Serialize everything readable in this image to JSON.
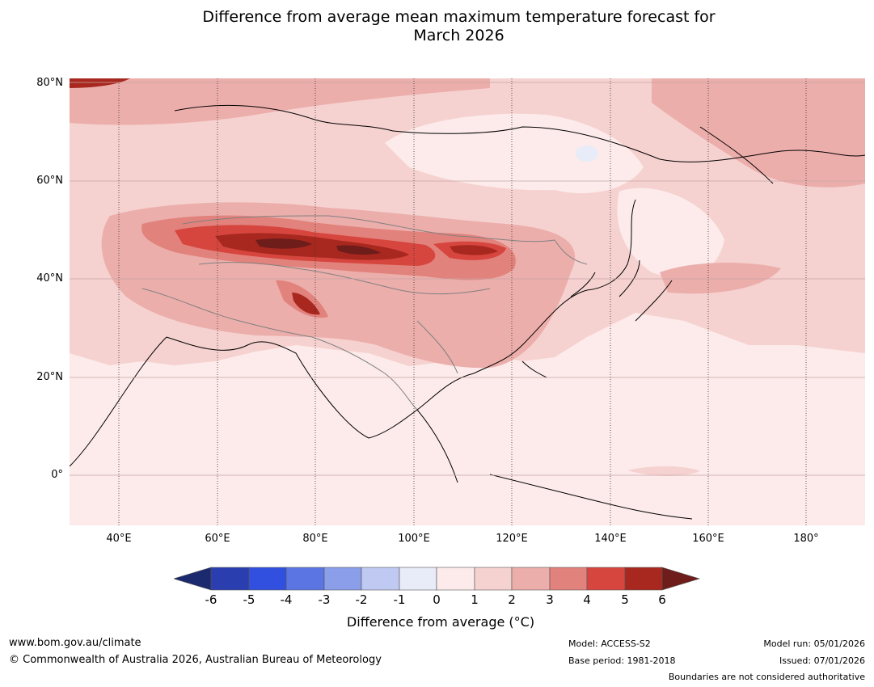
{
  "title": {
    "line1": "Difference from average mean maximum temperature forecast for",
    "line2": "March 2026"
  },
  "map": {
    "region": "Asia",
    "lat_labels": [
      "80°N",
      "60°N",
      "40°N",
      "20°N",
      "0°"
    ],
    "lon_labels": [
      "40°E",
      "60°E",
      "80°E",
      "100°E",
      "120°E",
      "140°E",
      "160°E",
      "180°"
    ],
    "lat_range": [
      -10,
      80
    ],
    "lon_range": [
      30,
      192
    ],
    "gridlines": true
  },
  "colorbar": {
    "ticks": [
      "-6",
      "-5",
      "-4",
      "-3",
      "-2",
      "-1",
      "0",
      "1",
      "2",
      "3",
      "4",
      "5",
      "6"
    ],
    "colors": [
      "#1b2a6e",
      "#2b3eb0",
      "#3150df",
      "#5b75e3",
      "#8a9ee9",
      "#bfc9f2",
      "#e8ebf8",
      "#fcebea",
      "#f5d2d0",
      "#ecaeab",
      "#e2827c",
      "#d6463f",
      "#a8281f",
      "#6e1d1a"
    ],
    "label": "Difference from average (°C)"
  },
  "footer": {
    "url": "www.bom.gov.au/climate",
    "copyright": "© Commonwealth of Australia 2026, Australian Bureau of Meteorology",
    "model": "Model: ACCESS-S2",
    "base_period": "Base period: 1981-2018",
    "model_run": "Model run: 05/01/2026",
    "issued": "Issued: 07/01/2026",
    "disclaimer": "Boundaries are not considered authoritative"
  }
}
